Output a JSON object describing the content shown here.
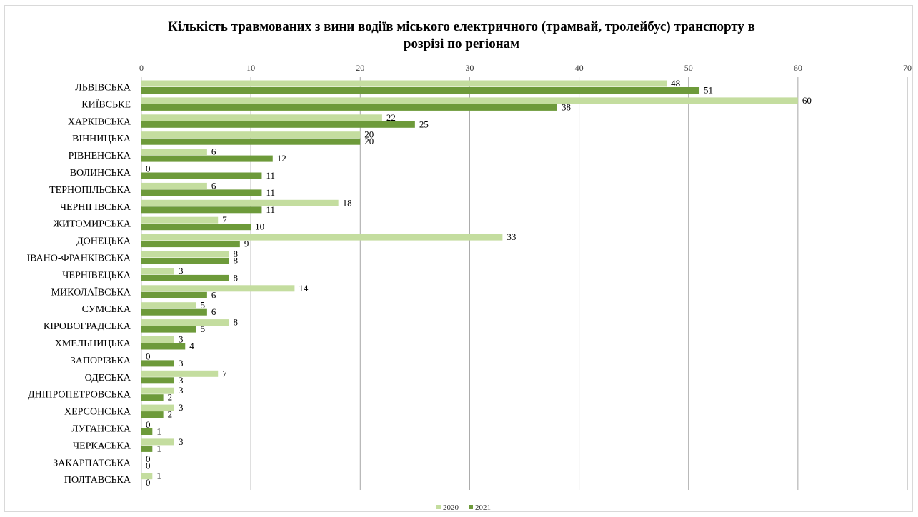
{
  "chart_data": {
    "type": "bar",
    "orientation": "horizontal",
    "title_line1": "Кількість травмованих з вини водіїв міського електричного (трамвай, тролейбус) транспорту в",
    "title_line2": "розрізі по регіонам",
    "xlabel": "",
    "ylabel": "",
    "xlim": [
      0,
      70
    ],
    "xticks": [
      0,
      10,
      20,
      30,
      40,
      50,
      60,
      70
    ],
    "grid": true,
    "legend_position": "bottom",
    "categories": [
      "ЛЬВІВСЬКА",
      "КИЇВСЬКЕ",
      "ХАРКІВСЬКА",
      "ВІННИЦЬКА",
      "РІВНЕНСЬКА",
      "ВОЛИНСЬКА",
      "ТЕРНОПІЛЬСЬКА",
      "ЧЕРНІГІВСЬКА",
      "ЖИТОМИРСЬКА",
      "ДОНЕЦЬКА",
      "ІВАНО-ФРАНКІВСЬКА",
      "ЧЕРНІВЕЦЬКА",
      "МИКОЛАЇВСЬКА",
      "СУМСЬКА",
      "КІРОВОГРАДСЬКА",
      "ХМЕЛЬНИЦЬКА",
      "ЗАПОРІЗЬКА",
      "ОДЕСЬКА",
      "ДНІПРОПЕТРОВСЬКА",
      "ХЕРСОНСЬКА",
      "ЛУГАНСЬКА",
      "ЧЕРКАСЬКА",
      "ЗАКАРПАТСЬКА",
      "ПОЛТАВСЬКА"
    ],
    "series": [
      {
        "name": "2020",
        "color": "#c4dd9f",
        "values": [
          48,
          60,
          22,
          20,
          6,
          0,
          6,
          18,
          7,
          33,
          8,
          3,
          14,
          5,
          8,
          3,
          0,
          7,
          3,
          3,
          0,
          3,
          0,
          1
        ]
      },
      {
        "name": "2021",
        "color": "#6d9a3a",
        "values": [
          51,
          38,
          25,
          20,
          12,
          11,
          11,
          11,
          10,
          9,
          8,
          8,
          6,
          6,
          5,
          4,
          3,
          3,
          2,
          2,
          1,
          1,
          0,
          0
        ]
      }
    ]
  }
}
